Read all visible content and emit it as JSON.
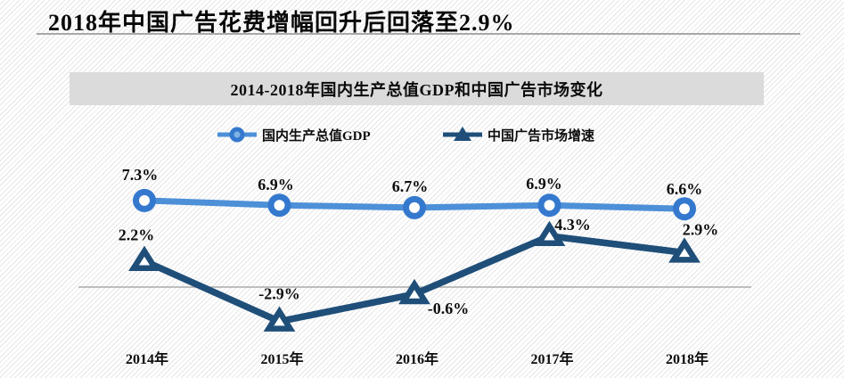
{
  "page": {
    "title": "2018年中国广告花费增幅回升后回落至2.9%"
  },
  "chart_data": {
    "type": "line",
    "title": "2014-2018年国内生产总值GDP和中国广告市场变化",
    "categories": [
      "2014年",
      "2015年",
      "2016年",
      "2017年",
      "2018年"
    ],
    "series": [
      {
        "name": "国内生产总值GDP",
        "values": [
          7.3,
          6.9,
          6.7,
          6.9,
          6.6
        ],
        "labels": [
          "7.3%",
          "6.9%",
          "6.7%",
          "6.9%",
          "6.6%"
        ],
        "marker": "circle",
        "line_color": "#4d90d8",
        "marker_color": "#3579ce",
        "marker_fill": "#ffffff"
      },
      {
        "name": "中国广告市场增速",
        "values": [
          2.2,
          -2.9,
          -0.6,
          4.3,
          2.9
        ],
        "labels": [
          "2.2%",
          "-2.9%",
          "-0.6%",
          "4.3%",
          "2.9%"
        ],
        "marker": "triangle",
        "line_color": "#1f4e79",
        "marker_color": "#1f4e79",
        "marker_fill": "#ffffff"
      }
    ],
    "xlabel": "",
    "ylabel": "",
    "unit": "%",
    "baseline_value": 0,
    "grid": "zero-baseline-only",
    "legend_position": "top",
    "colors": {
      "zero_line": "#9b9b9b",
      "label_text": "#0d0d0d",
      "band_background": "#dbdbdb",
      "rule": "#a8a8a8"
    }
  }
}
